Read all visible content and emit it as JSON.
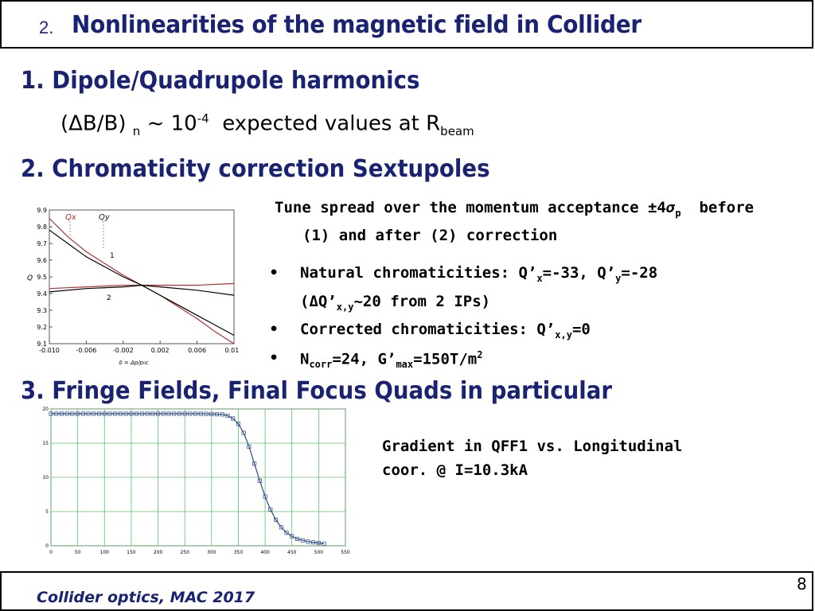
{
  "header": {
    "number": "2.",
    "title": "Nonlinearities of the magnetic field in Collider"
  },
  "section1": {
    "heading": "1. Dipole/Quadrupole harmonics",
    "formula_prefix": "(ΔB/B)",
    "formula_sub_n": "n",
    "formula_tilde": "~ 10",
    "formula_exp": "-4",
    "formula_text": "expected values at R",
    "formula_sub_beam": "beam"
  },
  "section2": {
    "heading": "2. Chromaticity correction Sextupoles",
    "tune_line1_a": "Tune spread over the momentum acceptance ±4",
    "tune_sigma": "σ",
    "tune_sigma_sub": "p",
    "tune_line1_b": "before",
    "tune_line2": "(1) and after (2) correction",
    "bullet1_a": "Natural chromaticities:  Q’",
    "bullet1_sub_x": "x",
    "bullet1_b": "=-33, Q’",
    "bullet1_sub_y": "y",
    "bullet1_c": "=-28",
    "bullet1_line2_a": "(",
    "bullet1_line2_delta": "Δ",
    "bullet1_line2_b": "Q’",
    "bullet1_line2_sub": "x,y",
    "bullet1_line2_c": "~20 from 2 IPs)",
    "bullet2_a": "Corrected chromaticities:  Q’",
    "bullet2_sub": "x,y",
    "bullet2_b": "=0",
    "bullet3_a": "N",
    "bullet3_sub_corr": "corr",
    "bullet3_b": "=24, G’",
    "bullet3_sub_max": "max",
    "bullet3_c": "=150T/m",
    "bullet3_sup": "2",
    "bullet_symbol": "•"
  },
  "section3": {
    "heading": "3. Fringe Fields, Final Focus Quads in particular",
    "caption_line1": "Gradient in QFF1 vs.  Longitudinal",
    "caption_line2": "coor. @ I=10.3kA"
  },
  "footer": {
    "text": "Collider optics, MAC 2017",
    "page": "8"
  },
  "colors": {
    "title": "#1a2372",
    "curve_black": "#000000",
    "curve_red": "#b03030",
    "grid_green": "#5fbf6f",
    "fringe_curve": "#2c4a8a"
  },
  "chart_data": [
    {
      "type": "line",
      "xlabel": "δ = Δp/p₀c",
      "ylabel": "Q",
      "xlim": [
        -0.01,
        0.01
      ],
      "ylim": [
        9.1,
        9.9
      ],
      "x_ticks": [
        "-0.010",
        "-0.006",
        "-0.002",
        "0.002",
        "0.006",
        "0.010"
      ],
      "y_ticks": [
        "9.9",
        "9.8",
        "9.7",
        "9.6",
        "9.5",
        "9.4",
        "9.3",
        "9.2",
        "9.1"
      ],
      "legend_labels": [
        "Qx",
        "Qy"
      ],
      "annotations": [
        "1",
        "2"
      ],
      "series": [
        {
          "name": "Qx",
          "x": [
            -0.01,
            -0.008,
            -0.006,
            -0.004,
            -0.002,
            0.0,
            0.002,
            0.004,
            0.006,
            0.008,
            0.01
          ],
          "y": [
            9.85,
            9.74,
            9.65,
            9.58,
            9.51,
            9.45,
            9.39,
            9.32,
            9.25,
            9.17,
            9.1
          ]
        },
        {
          "name": "Qy",
          "x": [
            -0.01,
            -0.008,
            -0.006,
            -0.004,
            -0.002,
            0.0,
            0.002,
            0.004,
            0.006,
            0.008,
            0.01
          ],
          "y": [
            9.78,
            9.7,
            9.62,
            9.56,
            9.5,
            9.45,
            9.39,
            9.33,
            9.27,
            9.21,
            9.15
          ]
        },
        {
          "name": "Qx corrected",
          "x": [
            -0.01,
            -0.006,
            -0.002,
            0.0,
            0.002,
            0.006,
            0.01
          ],
          "y": [
            9.43,
            9.44,
            9.45,
            9.45,
            9.45,
            9.45,
            9.46
          ]
        },
        {
          "name": "Qy corrected",
          "x": [
            -0.01,
            -0.006,
            -0.002,
            0.0,
            0.002,
            0.006,
            0.01
          ],
          "y": [
            9.41,
            9.43,
            9.44,
            9.45,
            9.44,
            9.42,
            9.39
          ]
        }
      ]
    },
    {
      "type": "line",
      "xlim": [
        0,
        550
      ],
      "ylim": [
        0,
        20
      ],
      "x_ticks": [
        "0",
        "50",
        "100",
        "150",
        "200",
        "250",
        "300",
        "350",
        "400",
        "450",
        "500",
        "550"
      ],
      "y_ticks": [
        "20",
        "15",
        "10",
        "5",
        "0"
      ],
      "series": [
        {
          "x": [
            0,
            40,
            80,
            120,
            160,
            200,
            240,
            280,
            320,
            330,
            340,
            350,
            360,
            370,
            380,
            390,
            400,
            410,
            420,
            430,
            440,
            450,
            460,
            470,
            480,
            490,
            500,
            510
          ],
          "y": [
            19.3,
            19.3,
            19.3,
            19.3,
            19.3,
            19.3,
            19.3,
            19.3,
            19.2,
            19.0,
            18.6,
            17.8,
            16.5,
            14.5,
            12.0,
            9.5,
            7.2,
            5.3,
            3.8,
            2.7,
            1.9,
            1.4,
            1.0,
            0.8,
            0.6,
            0.5,
            0.4,
            0.3
          ]
        }
      ]
    }
  ]
}
